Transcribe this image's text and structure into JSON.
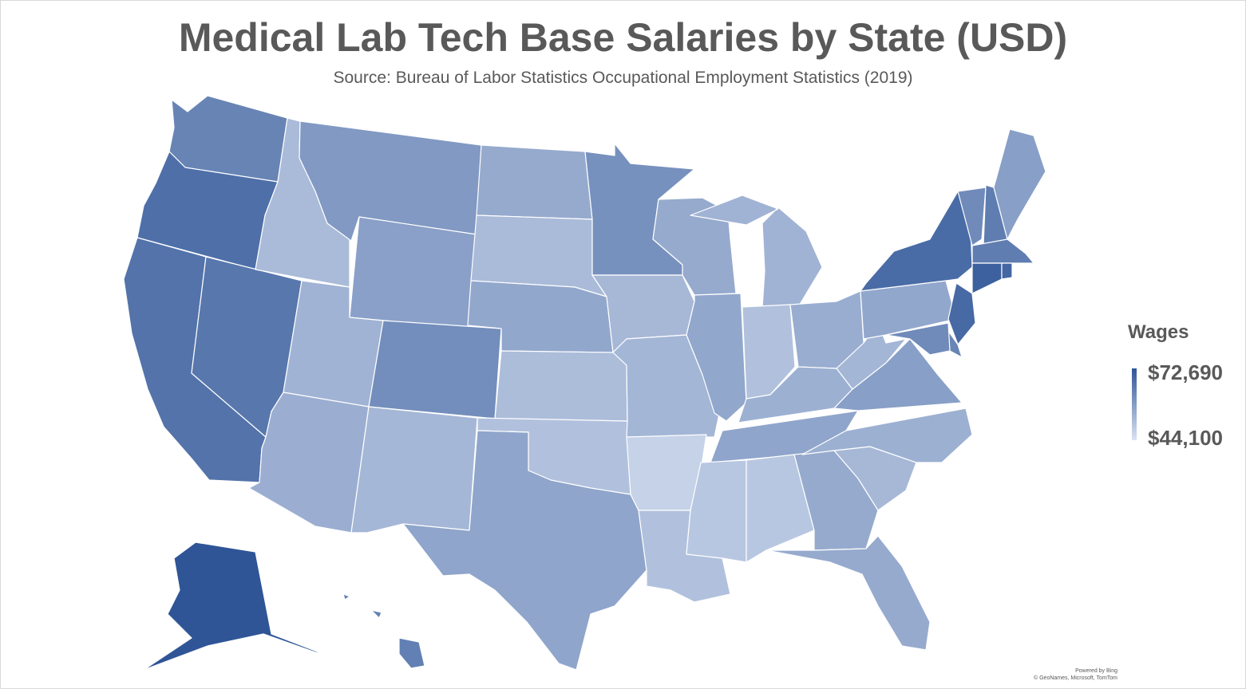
{
  "title": "Medical Lab Tech Base Salaries by State (USD)",
  "subtitle": "Source: Bureau of Labor Statistics Occupational Employment Statistics (2019)",
  "legend": {
    "title": "Wages",
    "max_label": "$72,690",
    "min_label": "$44,100",
    "max_value": 72690,
    "min_value": 44100,
    "color_max": "#2f5597",
    "color_min": "#dae3f3"
  },
  "attribution": {
    "line1": "Powered by Bing",
    "line2": "© GeoNames, Microsoft, TomTom"
  },
  "states": [
    {
      "code": "WA",
      "level": 0.67
    },
    {
      "code": "OR",
      "level": 0.82
    },
    {
      "code": "CA",
      "level": 0.79
    },
    {
      "code": "NV",
      "level": 0.76
    },
    {
      "code": "ID",
      "level": 0.28
    },
    {
      "code": "MT",
      "level": 0.52
    },
    {
      "code": "WY",
      "level": 0.47
    },
    {
      "code": "UT",
      "level": 0.34
    },
    {
      "code": "AZ",
      "level": 0.37
    },
    {
      "code": "CO",
      "level": 0.6
    },
    {
      "code": "NM",
      "level": 0.31
    },
    {
      "code": "ND",
      "level": 0.4
    },
    {
      "code": "SD",
      "level": 0.28
    },
    {
      "code": "NE",
      "level": 0.42
    },
    {
      "code": "KS",
      "level": 0.27
    },
    {
      "code": "OK",
      "level": 0.24
    },
    {
      "code": "TX",
      "level": 0.44
    },
    {
      "code": "MN",
      "level": 0.58
    },
    {
      "code": "IA",
      "level": 0.3
    },
    {
      "code": "MO",
      "level": 0.32
    },
    {
      "code": "AR",
      "level": 0.12
    },
    {
      "code": "LA",
      "level": 0.24
    },
    {
      "code": "WI",
      "level": 0.4
    },
    {
      "code": "IL",
      "level": 0.42
    },
    {
      "code": "MI",
      "level": 0.34
    },
    {
      "code": "IN",
      "level": 0.24
    },
    {
      "code": "OH",
      "level": 0.38
    },
    {
      "code": "KY",
      "level": 0.36
    },
    {
      "code": "TN",
      "level": 0.44
    },
    {
      "code": "MS",
      "level": 0.2
    },
    {
      "code": "AL",
      "level": 0.2
    },
    {
      "code": "GA",
      "level": 0.4
    },
    {
      "code": "FL",
      "level": 0.4
    },
    {
      "code": "SC",
      "level": 0.3
    },
    {
      "code": "NC",
      "level": 0.36
    },
    {
      "code": "VA",
      "level": 0.48
    },
    {
      "code": "WV",
      "level": 0.32
    },
    {
      "code": "PA",
      "level": 0.42
    },
    {
      "code": "NY",
      "level": 0.84
    },
    {
      "code": "VT",
      "level": 0.62
    },
    {
      "code": "NH",
      "level": 0.72
    },
    {
      "code": "ME",
      "level": 0.48
    },
    {
      "code": "MA",
      "level": 0.72
    },
    {
      "code": "RI",
      "level": 0.88
    },
    {
      "code": "CT",
      "level": 0.92
    },
    {
      "code": "NJ",
      "level": 0.86
    },
    {
      "code": "DE",
      "level": 0.66
    },
    {
      "code": "MD",
      "level": 0.62
    },
    {
      "code": "AK",
      "level": 1.0
    },
    {
      "code": "HI",
      "level": 0.7
    }
  ]
}
